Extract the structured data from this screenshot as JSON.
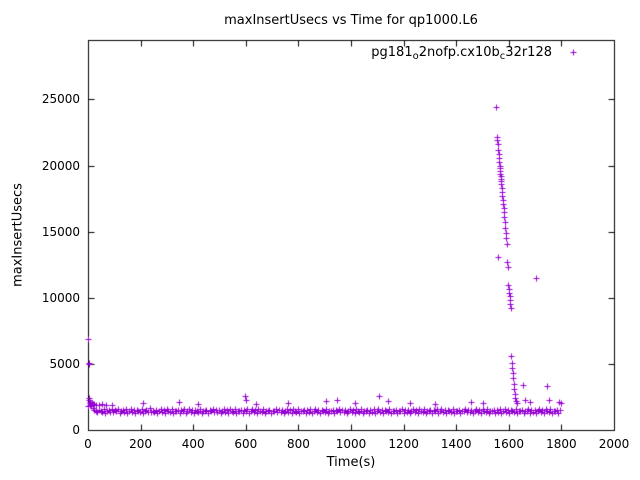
{
  "page": {
    "background": "#ffffff",
    "text_color": "#000000"
  },
  "chart_data": {
    "type": "scatter",
    "title": "maxInsertUsecs vs Time for qp1000.L6",
    "xlabel": "Time(s)",
    "ylabel": "maxInsertUsecs",
    "xlim": [
      0,
      2000
    ],
    "ylim": [
      0,
      29500
    ],
    "xticks": [
      0,
      200,
      400,
      600,
      800,
      1000,
      1200,
      1400,
      1600,
      1800,
      2000
    ],
    "yticks": [
      0,
      5000,
      10000,
      15000,
      20000,
      25000
    ],
    "grid": false,
    "legend_position": "top-right-inside",
    "marker": "plus",
    "marker_color": "#9400d3",
    "series": [
      {
        "name": "pg181_o2nofp.cx10b_c32r128",
        "label_parts": [
          {
            "text": "pg181"
          },
          {
            "text": "o",
            "sub": true
          },
          {
            "text": "2nofp.cx10b"
          },
          {
            "text": "c",
            "sub": true
          },
          {
            "text": "32r128"
          }
        ],
        "baseline": {
          "x_start": 0,
          "x_step": 6,
          "y": [
            1850,
            1920,
            1780,
            1650,
            1540,
            1475,
            1390,
            1520,
            1448,
            1365,
            1590,
            1305,
            1462,
            1528,
            1377,
            1610,
            1340,
            1489,
            1421,
            1553,
            1298,
            1437,
            1512,
            1356,
            1580,
            1310,
            1455,
            1608,
            1342,
            1497,
            1276,
            1533,
            1419,
            1370,
            1562,
            1295,
            1448,
            1516,
            1383,
            1627,
            1331,
            1470,
            1394,
            1549,
            1287,
            1442,
            1601,
            1359,
            1508,
            1323,
            1576,
            1411,
            1348,
            1594,
            1302,
            1466,
            1429,
            1538,
            1315,
            1483,
            1406,
            1560,
            1294,
            1451,
            1619,
            1337,
            1500,
            1281,
            1547,
            1424,
            1366,
            1585,
            1308,
            1460,
            1432,
            1526,
            1299,
            1476,
            1413,
            1557,
            1325,
            1490,
            1381,
            1543,
            1291,
            1446,
            1612,
            1352,
            1505,
            1318,
            1570,
            1408,
            1344,
            1598,
            1306,
            1469,
            1426,
            1534,
            1312,
            1487,
            1402,
            1565,
            1288,
            1456,
            1623,
            1334,
            1495,
            1277,
            1551,
            1417,
            1362,
            1589,
            1301,
            1463,
            1435,
            1529,
            1296,
            1472,
            1410,
            1561,
            1329,
            1485,
            1377,
            1546,
            1284,
            1439,
            1606,
            1356,
            1511,
            1321,
            1573,
            1405,
            1341,
            1592,
            1309,
            1458,
            1423,
            1537,
            1317,
            1481,
            1399,
            1563,
            1292,
            1449,
            1615,
            1338,
            1503,
            1279,
            1544,
            1427,
            1368,
            1587,
            1304,
            1467,
            1430,
            1523,
            1293,
            1478,
            1415,
            1555,
            1327,
            1492,
            1385,
            1541,
            1289,
            1444,
            1609,
            1350,
            1507,
            1316,
            1578,
            1403,
            1346,
            1596,
            1300,
            1461,
            1433,
            1531,
            1314,
            1489,
            1397,
            1567,
            1286,
            1453,
            1621,
            1332,
            1498,
            1275,
            1549,
            1422,
            1364,
            1583,
            1307,
            1465,
            1428,
            1527,
            1297,
            1474,
            1418,
            1559,
            1323,
            1488,
            1379,
            1545,
            1283,
            1441,
            1604,
            1354,
            1509,
            1319,
            1571,
            1407,
            1343,
            1590,
            1311,
            1456,
            1425,
            1535,
            1313,
            1479,
            1401,
            1564,
            1290,
            1447,
            1617,
            1336,
            1501,
            1278,
            1542,
            1426,
            1360,
            1581,
            1303,
            1469,
            1431,
            1525,
            1295,
            1470,
            1416,
            1553,
            1325,
            1486,
            1383,
            1539,
            1287,
            1443,
            1607,
            1348,
            1512,
            1320,
            1569,
            1409,
            1345,
            1588,
            1298,
            1462,
            1434,
            1533,
            1310,
            1484,
            1398,
            1562,
            1285,
            1450,
            1613,
            1330,
            1496,
            1273,
            1540,
            1420,
            1358,
            1579,
            1305,
            1471,
            1436,
            1521,
            1291,
            1468,
            1414,
            1551,
            1321,
            1483,
            1375,
            1537,
            1281,
            1445,
            1602,
            1352,
            1514,
            1317,
            1567,
            1411,
            1347,
            1586,
            1299,
            1464,
            1437,
            1530,
            1308,
            1482
          ]
        },
        "points": [
          [
            1,
            6900
          ],
          [
            2,
            5100
          ],
          [
            4,
            5000
          ],
          [
            3,
            2400
          ],
          [
            5,
            2250
          ],
          [
            6,
            2100
          ],
          [
            8,
            2020
          ],
          [
            10,
            1960
          ],
          [
            14,
            2080
          ],
          [
            18,
            1930
          ],
          [
            24,
            1990
          ],
          [
            30,
            1900
          ],
          [
            40,
            1870
          ],
          [
            52,
            1960
          ],
          [
            68,
            1910
          ],
          [
            90,
            1880
          ],
          [
            210,
            2050
          ],
          [
            345,
            2150
          ],
          [
            420,
            1980
          ],
          [
            598,
            2600
          ],
          [
            602,
            2250
          ],
          [
            640,
            1990
          ],
          [
            760,
            2050
          ],
          [
            905,
            2200
          ],
          [
            948,
            2250
          ],
          [
            1015,
            2050
          ],
          [
            1105,
            2600
          ],
          [
            1140,
            2200
          ],
          [
            1225,
            2050
          ],
          [
            1320,
            1990
          ],
          [
            1455,
            2150
          ],
          [
            1500,
            2060
          ],
          [
            1552,
            24400
          ],
          [
            1554,
            22200
          ],
          [
            1556,
            21900
          ],
          [
            1558,
            21600
          ],
          [
            1559,
            21200
          ],
          [
            1561,
            20900
          ],
          [
            1562,
            20600
          ],
          [
            1564,
            20300
          ],
          [
            1565,
            20000
          ],
          [
            1566,
            19800
          ],
          [
            1567,
            19600
          ],
          [
            1568,
            19400
          ],
          [
            1569,
            19200
          ],
          [
            1570,
            19000
          ],
          [
            1571,
            18800
          ],
          [
            1572,
            18600
          ],
          [
            1573,
            18300
          ],
          [
            1574,
            18000
          ],
          [
            1576,
            17700
          ],
          [
            1577,
            17400
          ],
          [
            1578,
            17100
          ],
          [
            1580,
            16800
          ],
          [
            1581,
            16500
          ],
          [
            1583,
            16100
          ],
          [
            1585,
            15700
          ],
          [
            1586,
            15300
          ],
          [
            1588,
            14900
          ],
          [
            1590,
            14500
          ],
          [
            1592,
            14100
          ],
          [
            1560,
            13100
          ],
          [
            1594,
            12700
          ],
          [
            1596,
            12300
          ],
          [
            1598,
            11000
          ],
          [
            1600,
            10700
          ],
          [
            1601,
            10400
          ],
          [
            1603,
            10100
          ],
          [
            1604,
            9800
          ],
          [
            1606,
            9500
          ],
          [
            1607,
            9200
          ],
          [
            1610,
            5600
          ],
          [
            1612,
            5100
          ],
          [
            1613,
            4700
          ],
          [
            1615,
            4300
          ],
          [
            1617,
            3900
          ],
          [
            1619,
            3500
          ],
          [
            1621,
            3100
          ],
          [
            1623,
            2700
          ],
          [
            1625,
            2400
          ],
          [
            1628,
            2200
          ],
          [
            1632,
            2050
          ],
          [
            1705,
            11500
          ],
          [
            1655,
            3400
          ],
          [
            1660,
            2300
          ],
          [
            1680,
            2100
          ],
          [
            1745,
            3300
          ],
          [
            1752,
            2250
          ],
          [
            1790,
            2150
          ],
          [
            1800,
            2050
          ]
        ]
      }
    ]
  }
}
